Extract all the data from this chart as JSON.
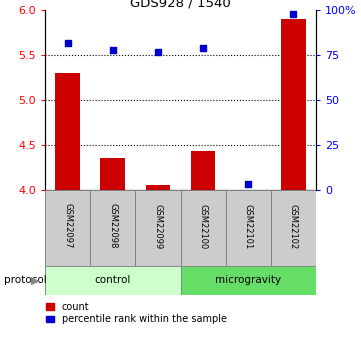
{
  "title": "GDS928 / 1540",
  "samples": [
    "GSM22097",
    "GSM22098",
    "GSM22099",
    "GSM22100",
    "GSM22101",
    "GSM22102"
  ],
  "bar_values": [
    5.3,
    4.35,
    4.05,
    4.43,
    4.0,
    5.9
  ],
  "percentile_values": [
    82,
    78,
    77,
    79,
    3,
    98
  ],
  "ylim_left": [
    4,
    6
  ],
  "ylim_right": [
    0,
    100
  ],
  "yticks_left": [
    4,
    4.5,
    5,
    5.5,
    6
  ],
  "yticks_right": [
    0,
    25,
    50,
    75,
    100
  ],
  "ytick_labels_right": [
    "0",
    "25",
    "50",
    "75",
    "100%"
  ],
  "bar_color": "#cc0000",
  "dot_color": "#0000cc",
  "group1_label": "control",
  "group2_label": "microgravity",
  "group1_color": "#ccffcc",
  "group2_color": "#66dd66",
  "sample_box_color": "#cccccc",
  "legend_count_label": "count",
  "legend_pct_label": "percentile rank within the sample",
  "protocol_label": "protocol",
  "bar_bottom": 4.0,
  "dotted_line_y": [
    4.5,
    5.0,
    5.5
  ],
  "bar_width": 0.55
}
